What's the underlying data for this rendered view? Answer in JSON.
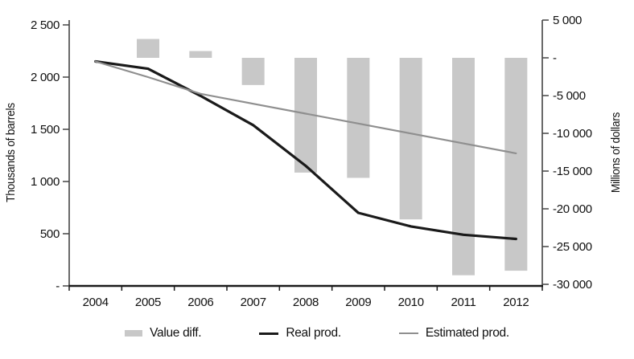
{
  "chart_data": {
    "type": "bar+line combo",
    "categories": [
      "2004",
      "2005",
      "2006",
      "2007",
      "2008",
      "2009",
      "2010",
      "2011",
      "2012"
    ],
    "series": [
      {
        "name": "Value diff.",
        "type": "bar",
        "axis": "right",
        "color": "#c8c8c8",
        "values": [
          null,
          2500,
          900,
          -3600,
          -15200,
          -15900,
          -21400,
          -28800,
          -28200
        ]
      },
      {
        "name": "Real prod.",
        "type": "line",
        "axis": "left",
        "color": "#1a1a1a",
        "values": [
          2150,
          2080,
          1820,
          1540,
          1150,
          700,
          570,
          490,
          450
        ]
      },
      {
        "name": "Estimated prod.",
        "type": "line",
        "axis": "left",
        "color": "#8f8f8f",
        "values": [
          2150,
          2000,
          1840,
          1745,
          1650,
          1555,
          1460,
          1365,
          1270
        ]
      }
    ],
    "left_axis": {
      "label": "Thousands of barrels",
      "range": [
        0,
        2500
      ],
      "tick_values": [
        0,
        500,
        1000,
        1500,
        2000,
        2500
      ],
      "tick_labels": [
        "-",
        "500",
        "1 000",
        "1 500",
        "2 000",
        "2 500"
      ]
    },
    "right_axis": {
      "label": "Millions of dollars",
      "range": [
        -30000,
        5000
      ],
      "tick_values": [
        -30000,
        -25000,
        -20000,
        -15000,
        -10000,
        -5000,
        0,
        5000
      ],
      "tick_labels": [
        "-30 000",
        "-25 000",
        "-20 000",
        "-15 000",
        "-10 000",
        "-5 000",
        "-",
        "5 000"
      ]
    },
    "legend": {
      "position": "bottom",
      "items": [
        "Value diff.",
        "Real prod.",
        "Estimated prod."
      ]
    },
    "grid": false
  }
}
